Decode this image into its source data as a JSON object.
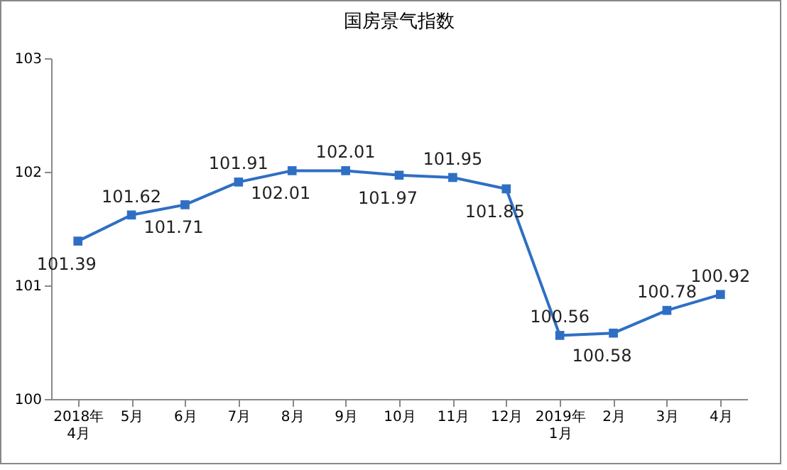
{
  "chart_data": {
    "type": "line",
    "title": "国房景气指数",
    "categories": [
      "2018年\n4月",
      "5月",
      "6月",
      "7月",
      "8月",
      "9月",
      "10月",
      "11月",
      "12月",
      "2019年\n1月",
      "2月",
      "3月",
      "4月"
    ],
    "series": [
      {
        "color": "#2e6fc4",
        "values": [
          101.39,
          101.62,
          101.71,
          101.91,
          102.01,
          102.01,
          101.97,
          101.95,
          101.85,
          100.56,
          100.58,
          100.78,
          100.92
        ]
      }
    ],
    "ylim": [
      100,
      103
    ],
    "yticks": [
      100,
      101,
      102,
      103
    ],
    "grid": false,
    "marker": "square",
    "line_style": "solid",
    "data_labels": true
  }
}
